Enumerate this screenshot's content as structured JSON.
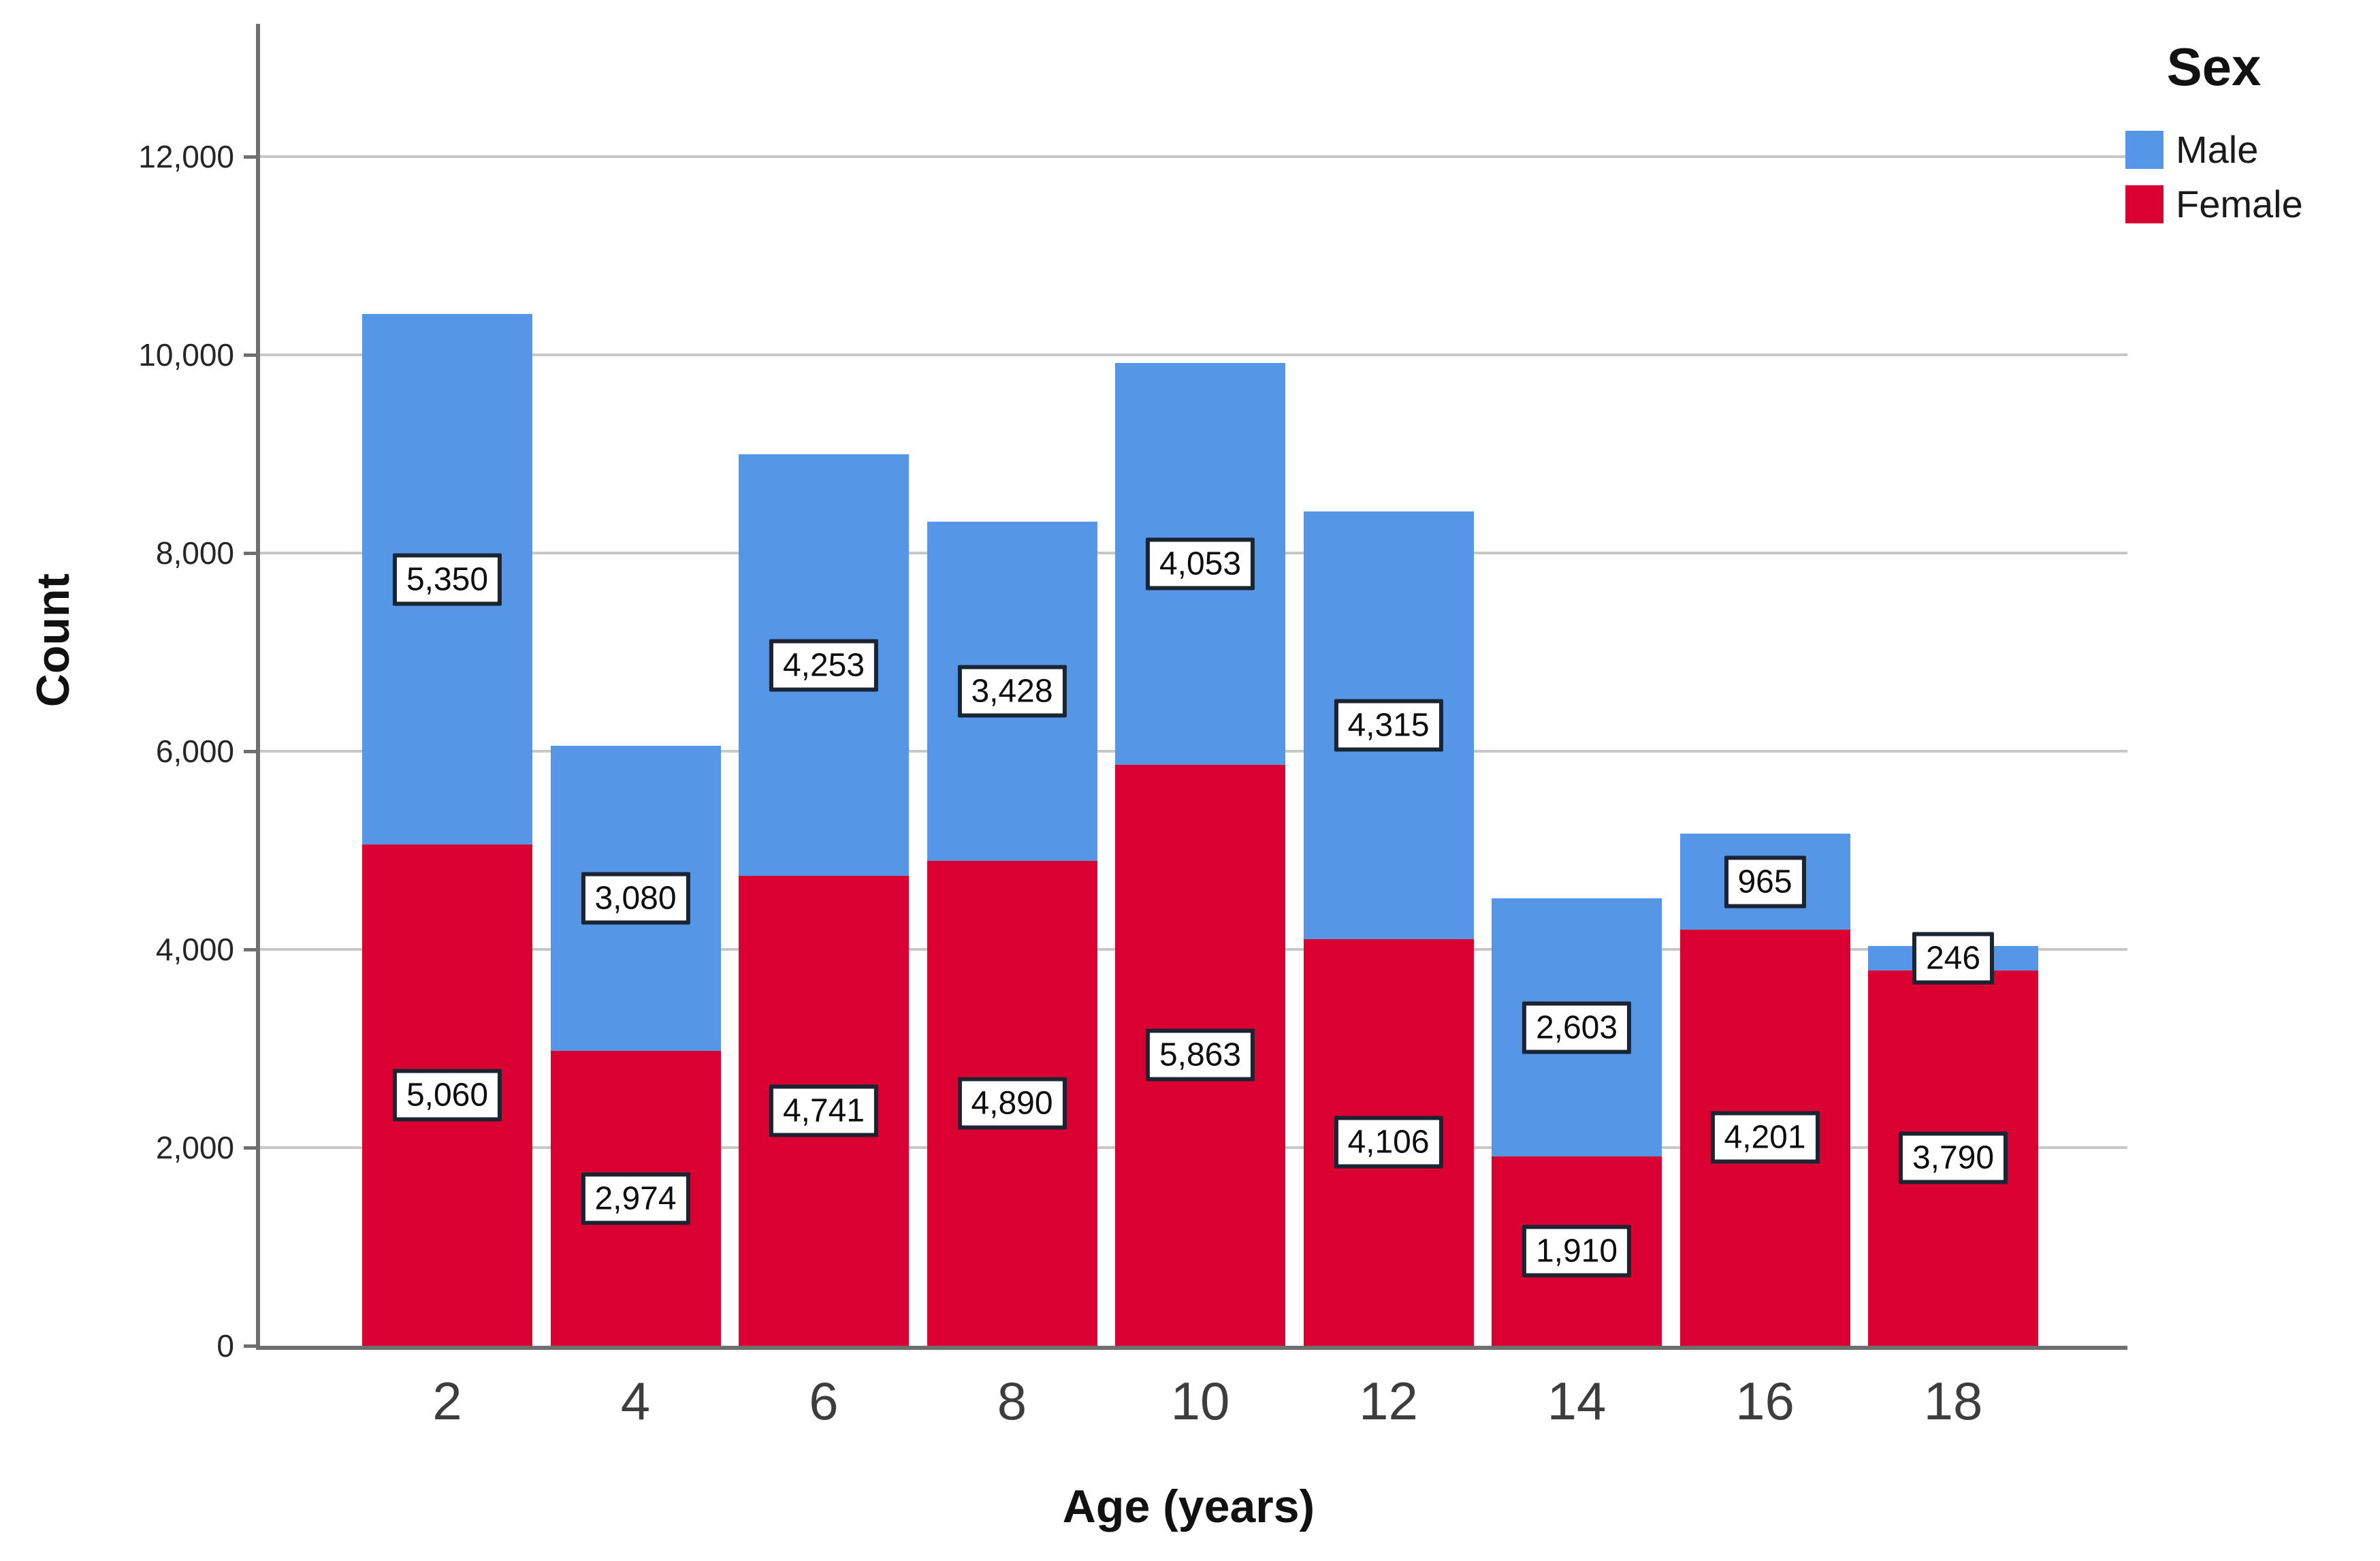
{
  "chart_data": {
    "type": "bar",
    "stacked": true,
    "title": "",
    "xlabel": "Age (years)",
    "ylabel": "Count",
    "categories": [
      "2",
      "4",
      "6",
      "8",
      "10",
      "12",
      "14",
      "16",
      "18"
    ],
    "series": [
      {
        "name": "Male",
        "color": "#5596E6",
        "values": [
          5350,
          3080,
          4253,
          3428,
          4053,
          4315,
          2603,
          965,
          246
        ]
      },
      {
        "name": "Female",
        "color": "#DB0032",
        "values": [
          5060,
          2974,
          4741,
          4890,
          5863,
          4106,
          1910,
          4201,
          3790
        ]
      }
    ],
    "stack_order_bottom_to_top": [
      "Female",
      "Male"
    ],
    "yticks": [
      {
        "value": 0,
        "label": "0"
      },
      {
        "value": 2000,
        "label": "2,000"
      },
      {
        "value": 4000,
        "label": "4,000"
      },
      {
        "value": 6000,
        "label": "6,000"
      },
      {
        "value": 8000,
        "label": "8,000"
      },
      {
        "value": 10000,
        "label": "10,000"
      },
      {
        "value": 12000,
        "label": "12,000"
      }
    ],
    "ylim": [
      0,
      13340
    ],
    "grid": "horizontal",
    "legend": {
      "title": "Sex",
      "position": "top-right"
    },
    "data_labels": {
      "boxed": true,
      "format": "thousands-comma"
    },
    "colors": {
      "gridline": "#C7C7C7",
      "axis": "#6F6F6F",
      "label_box_border": "#1B2433",
      "label_box_bg": "#FFFFFF",
      "tick_text": "#262626"
    }
  }
}
